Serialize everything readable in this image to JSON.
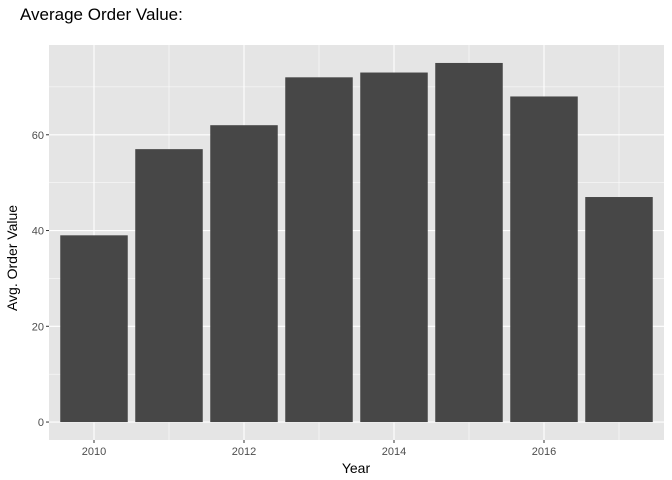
{
  "chart_data": {
    "type": "bar",
    "title": "Average Order Value:",
    "xlabel": "Year",
    "ylabel": "Avg. Order Value",
    "categories": [
      2010,
      2011,
      2012,
      2013,
      2014,
      2015,
      2016,
      2017
    ],
    "values": [
      39,
      57,
      62,
      72,
      73,
      75,
      68,
      47
    ],
    "xlim": [
      2009.4,
      2017.6
    ],
    "ylim": [
      -3.75,
      78.75
    ],
    "x_ticks": [
      2010,
      2012,
      2014,
      2016
    ],
    "x_tick_labels": [
      "2010",
      "2012",
      "2014",
      "2016"
    ],
    "y_ticks": [
      0,
      20,
      40,
      60
    ],
    "y_tick_labels": [
      "0",
      "20",
      "40",
      "60"
    ],
    "bar_color": "#474747",
    "panel_background": "#e5e5e5",
    "grid": true,
    "grid_color": "#ffffff",
    "legend": "none"
  }
}
